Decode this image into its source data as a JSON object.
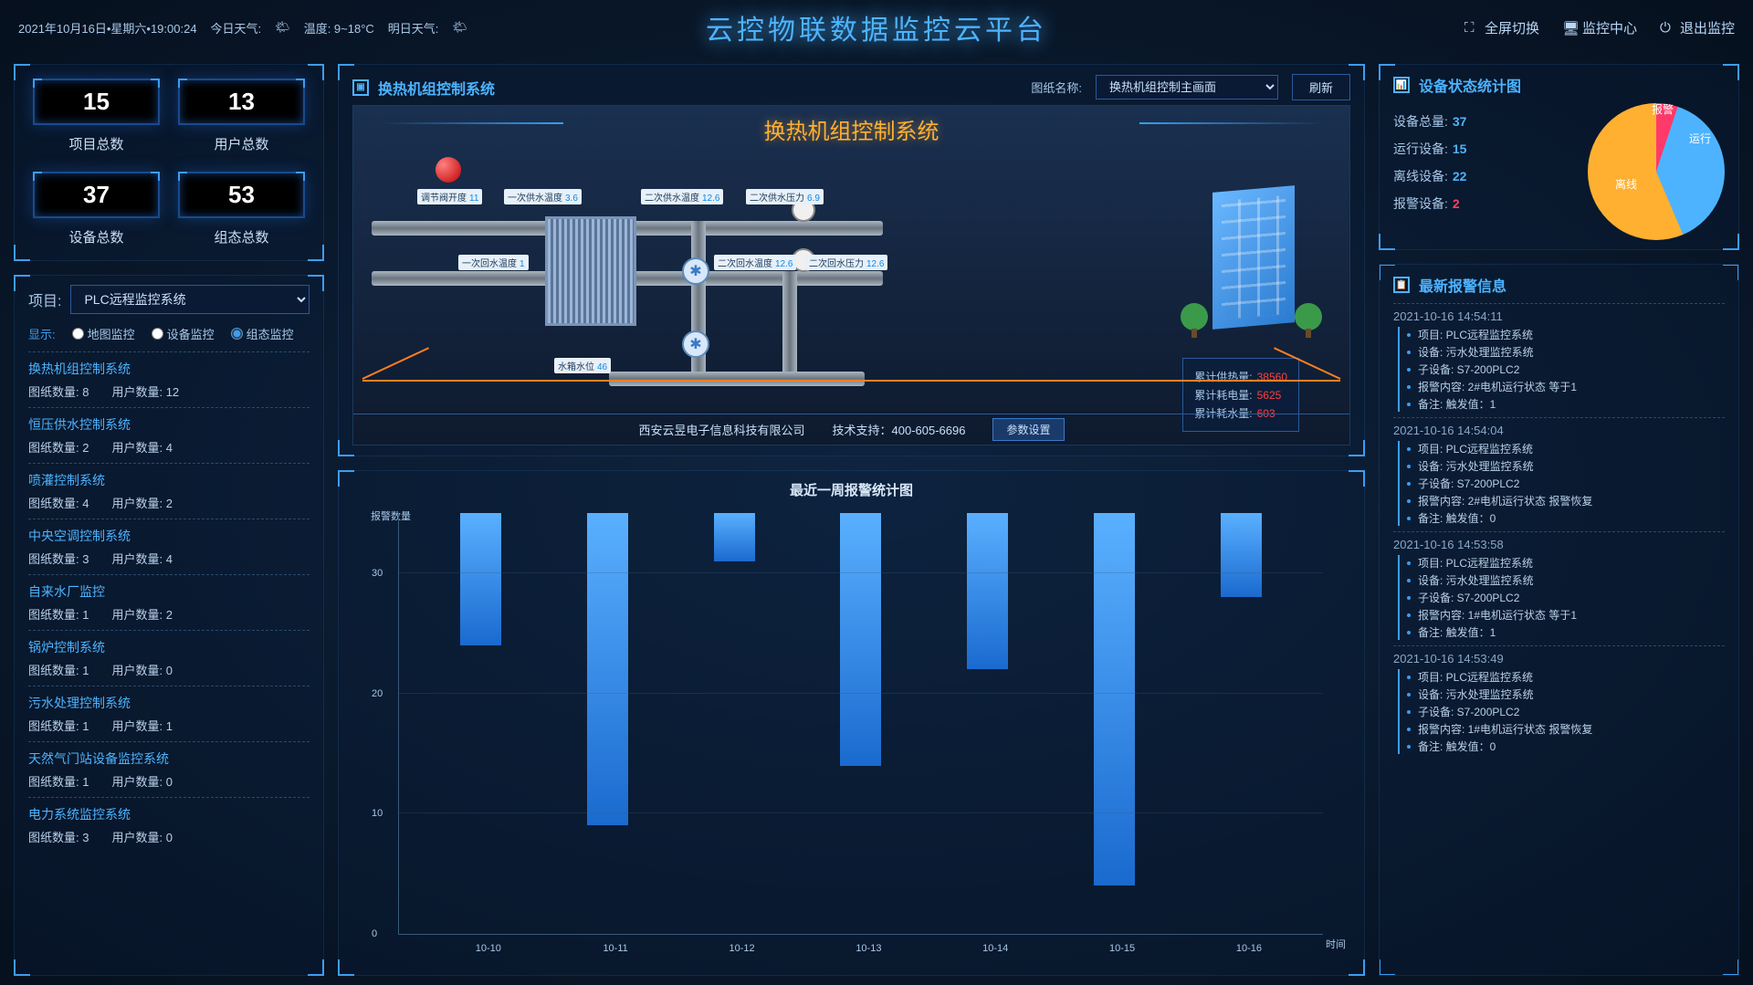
{
  "header": {
    "datetime": "2021年10月16日•星期六•19:00:24",
    "today_weather_label": "今日天气:",
    "temp_label": "温度: 9~18°C",
    "tomorrow_label": "明日天气:",
    "title": "云控物联数据监控云平台",
    "btn_fullscreen": "全屏切换",
    "btn_monitor": "监控中心",
    "btn_exit": "退出监控"
  },
  "stats": {
    "project_count": "15",
    "project_label": "项目总数",
    "user_count": "13",
    "user_label": "用户总数",
    "device_count": "37",
    "device_label": "设备总数",
    "config_count": "53",
    "config_label": "组态总数"
  },
  "project_select": {
    "label": "项目:",
    "value": "PLC远程监控系统",
    "display_label": "显示:",
    "opt_map": "地图监控",
    "opt_device": "设备监控",
    "opt_config": "组态监控"
  },
  "systems": [
    {
      "name": "换热机组控制系统",
      "drawings": "8",
      "users": "12"
    },
    {
      "name": "恒压供水控制系统",
      "drawings": "2",
      "users": "4"
    },
    {
      "name": "喷灌控制系统",
      "drawings": "4",
      "users": "2"
    },
    {
      "name": "中央空调控制系统",
      "drawings": "3",
      "users": "4"
    },
    {
      "name": "自来水厂监控",
      "drawings": "1",
      "users": "2"
    },
    {
      "name": "锅炉控制系统",
      "drawings": "1",
      "users": "0"
    },
    {
      "name": "污水处理控制系统",
      "drawings": "1",
      "users": "1"
    },
    {
      "name": "天然气门站设备监控系统",
      "drawings": "1",
      "users": "0"
    },
    {
      "name": "电力系统监控系统",
      "drawings": "3",
      "users": "0"
    }
  ],
  "sys_labels": {
    "drawings": "图纸数量:",
    "users": "用户数量:"
  },
  "scada": {
    "panel_title": "换热机组控制系统",
    "drawing_label": "图纸名称:",
    "drawing_value": "换热机组控制主画面",
    "refresh": "刷新",
    "title": "换热机组控制系统",
    "tags": {
      "valve": {
        "label": "调节阀开度",
        "value": "11"
      },
      "supply1_temp": {
        "label": "一次供水温度",
        "value": "3.6"
      },
      "supply2_temp": {
        "label": "二次供水温度",
        "value": "12.6"
      },
      "supply2_press": {
        "label": "二次供水压力",
        "value": "6.9"
      },
      "return1_temp": {
        "label": "一次回水温度",
        "value": "1"
      },
      "return2_temp": {
        "label": "二次回水温度",
        "value": "12.6"
      },
      "return2_press": {
        "label": "二次回水压力",
        "value": "12.6"
      },
      "tank_level": {
        "label": "水箱水位",
        "value": "46"
      }
    },
    "info": {
      "heat_label": "累计供热量:",
      "heat_value": "38560",
      "power_label": "累计耗电量:",
      "power_value": "5625",
      "water_label": "累计耗水量:",
      "water_value": "603"
    },
    "footer_company": "西安云昱电子信息科技有限公司",
    "footer_support": "技术支持：400-605-6696",
    "footer_btn": "参数设置"
  },
  "chart": {
    "title": "最近一周报警统计图",
    "y_label": "报警数量",
    "x_label": "时间",
    "y_max": 35,
    "y_ticks": [
      0,
      10,
      20,
      30
    ],
    "categories": [
      "10-10",
      "10-11",
      "10-12",
      "10-13",
      "10-14",
      "10-15",
      "10-16"
    ],
    "values": [
      11,
      26,
      4,
      21,
      13,
      31,
      7
    ],
    "bar_color_top": "#5ab0ff",
    "bar_color_bot": "#1a6acf"
  },
  "device_status": {
    "title": "设备状态统计图",
    "total_label": "设备总量:",
    "total": "37",
    "running_label": "运行设备:",
    "running": "15",
    "offline_label": "离线设备:",
    "offline": "22",
    "alarm_label": "报警设备:",
    "alarm": "2",
    "pie": {
      "running_color": "#4db3ff",
      "running_pct": 38.5,
      "running_text": "运行",
      "offline_color": "#ffb030",
      "offline_pct": 56.4,
      "offline_text": "离线",
      "alarm_color": "#ff3a6a",
      "alarm_pct": 5.1,
      "alarm_text": "报警"
    }
  },
  "alarms": {
    "title": "最新报警信息",
    "field_labels": {
      "project": "项目:",
      "device": "设备:",
      "sub": "子设备:",
      "content": "报警内容:",
      "remark": "备注:"
    },
    "items": [
      {
        "time": "2021-10-16 14:54:11",
        "project": "PLC远程监控系统",
        "device": "污水处理监控系统",
        "sub": "S7-200PLC2",
        "content": "2#电机运行状态 等于1",
        "remark": "触发值：1"
      },
      {
        "time": "2021-10-16 14:54:04",
        "project": "PLC远程监控系统",
        "device": "污水处理监控系统",
        "sub": "S7-200PLC2",
        "content": "2#电机运行状态 报警恢复",
        "remark": "触发值：0"
      },
      {
        "time": "2021-10-16 14:53:58",
        "project": "PLC远程监控系统",
        "device": "污水处理监控系统",
        "sub": "S7-200PLC2",
        "content": "1#电机运行状态 等于1",
        "remark": "触发值：1"
      },
      {
        "time": "2021-10-16 14:53:49",
        "project": "PLC远程监控系统",
        "device": "污水处理监控系统",
        "sub": "S7-200PLC2",
        "content": "1#电机运行状态 报警恢复",
        "remark": "触发值：0"
      }
    ]
  }
}
